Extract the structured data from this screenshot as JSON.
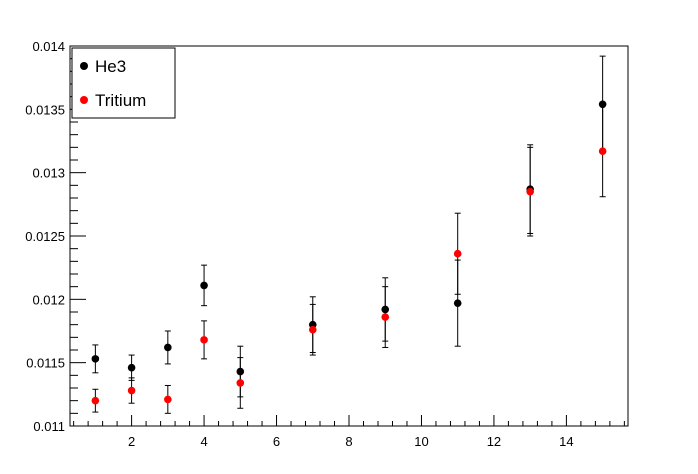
{
  "chart_data": {
    "type": "scatter",
    "title": "",
    "xlabel": "",
    "ylabel": "",
    "xlim": [
      0.3,
      15.7
    ],
    "ylim": [
      0.011,
      0.014
    ],
    "grid": false,
    "legend_position": "top-left",
    "x_ticks": [
      "2",
      "4",
      "6",
      "8",
      "10",
      "12",
      "14"
    ],
    "y_ticks": [
      "0.011",
      "0.0115",
      "0.012",
      "0.0125",
      "0.013",
      "0.0135",
      "0.014"
    ],
    "series": [
      {
        "name": "He3",
        "color": "#000000",
        "points": [
          {
            "x": 1,
            "y": 0.01153,
            "err": 0.00011
          },
          {
            "x": 2,
            "y": 0.01146,
            "err": 0.0001
          },
          {
            "x": 3,
            "y": 0.01162,
            "err": 0.00013
          },
          {
            "x": 4,
            "y": 0.01211,
            "err": 0.00016
          },
          {
            "x": 5,
            "y": 0.01143,
            "err": 0.0002
          },
          {
            "x": 7,
            "y": 0.0118,
            "err": 0.00022
          },
          {
            "x": 9,
            "y": 0.01192,
            "err": 0.00025
          },
          {
            "x": 11,
            "y": 0.01197,
            "err": 0.00034
          },
          {
            "x": 13,
            "y": 0.01287,
            "err": 0.00035
          },
          {
            "x": 15,
            "y": 0.01354,
            "err": 0.00038
          }
        ]
      },
      {
        "name": "Tritium",
        "color": "#ff0000",
        "points": [
          {
            "x": 1,
            "y": 0.0112,
            "err": 9e-05
          },
          {
            "x": 2,
            "y": 0.01128,
            "err": 0.0001
          },
          {
            "x": 3,
            "y": 0.01121,
            "err": 0.00011
          },
          {
            "x": 4,
            "y": 0.01168,
            "err": 0.00015
          },
          {
            "x": 5,
            "y": 0.01134,
            "err": 0.0002
          },
          {
            "x": 7,
            "y": 0.01176,
            "err": 0.0002
          },
          {
            "x": 9,
            "y": 0.01186,
            "err": 0.00024
          },
          {
            "x": 11,
            "y": 0.01236,
            "err": 0.00032
          },
          {
            "x": 13,
            "y": 0.01285,
            "err": 0.00035
          },
          {
            "x": 15,
            "y": 0.01317,
            "err": 0.00036
          }
        ]
      }
    ]
  }
}
